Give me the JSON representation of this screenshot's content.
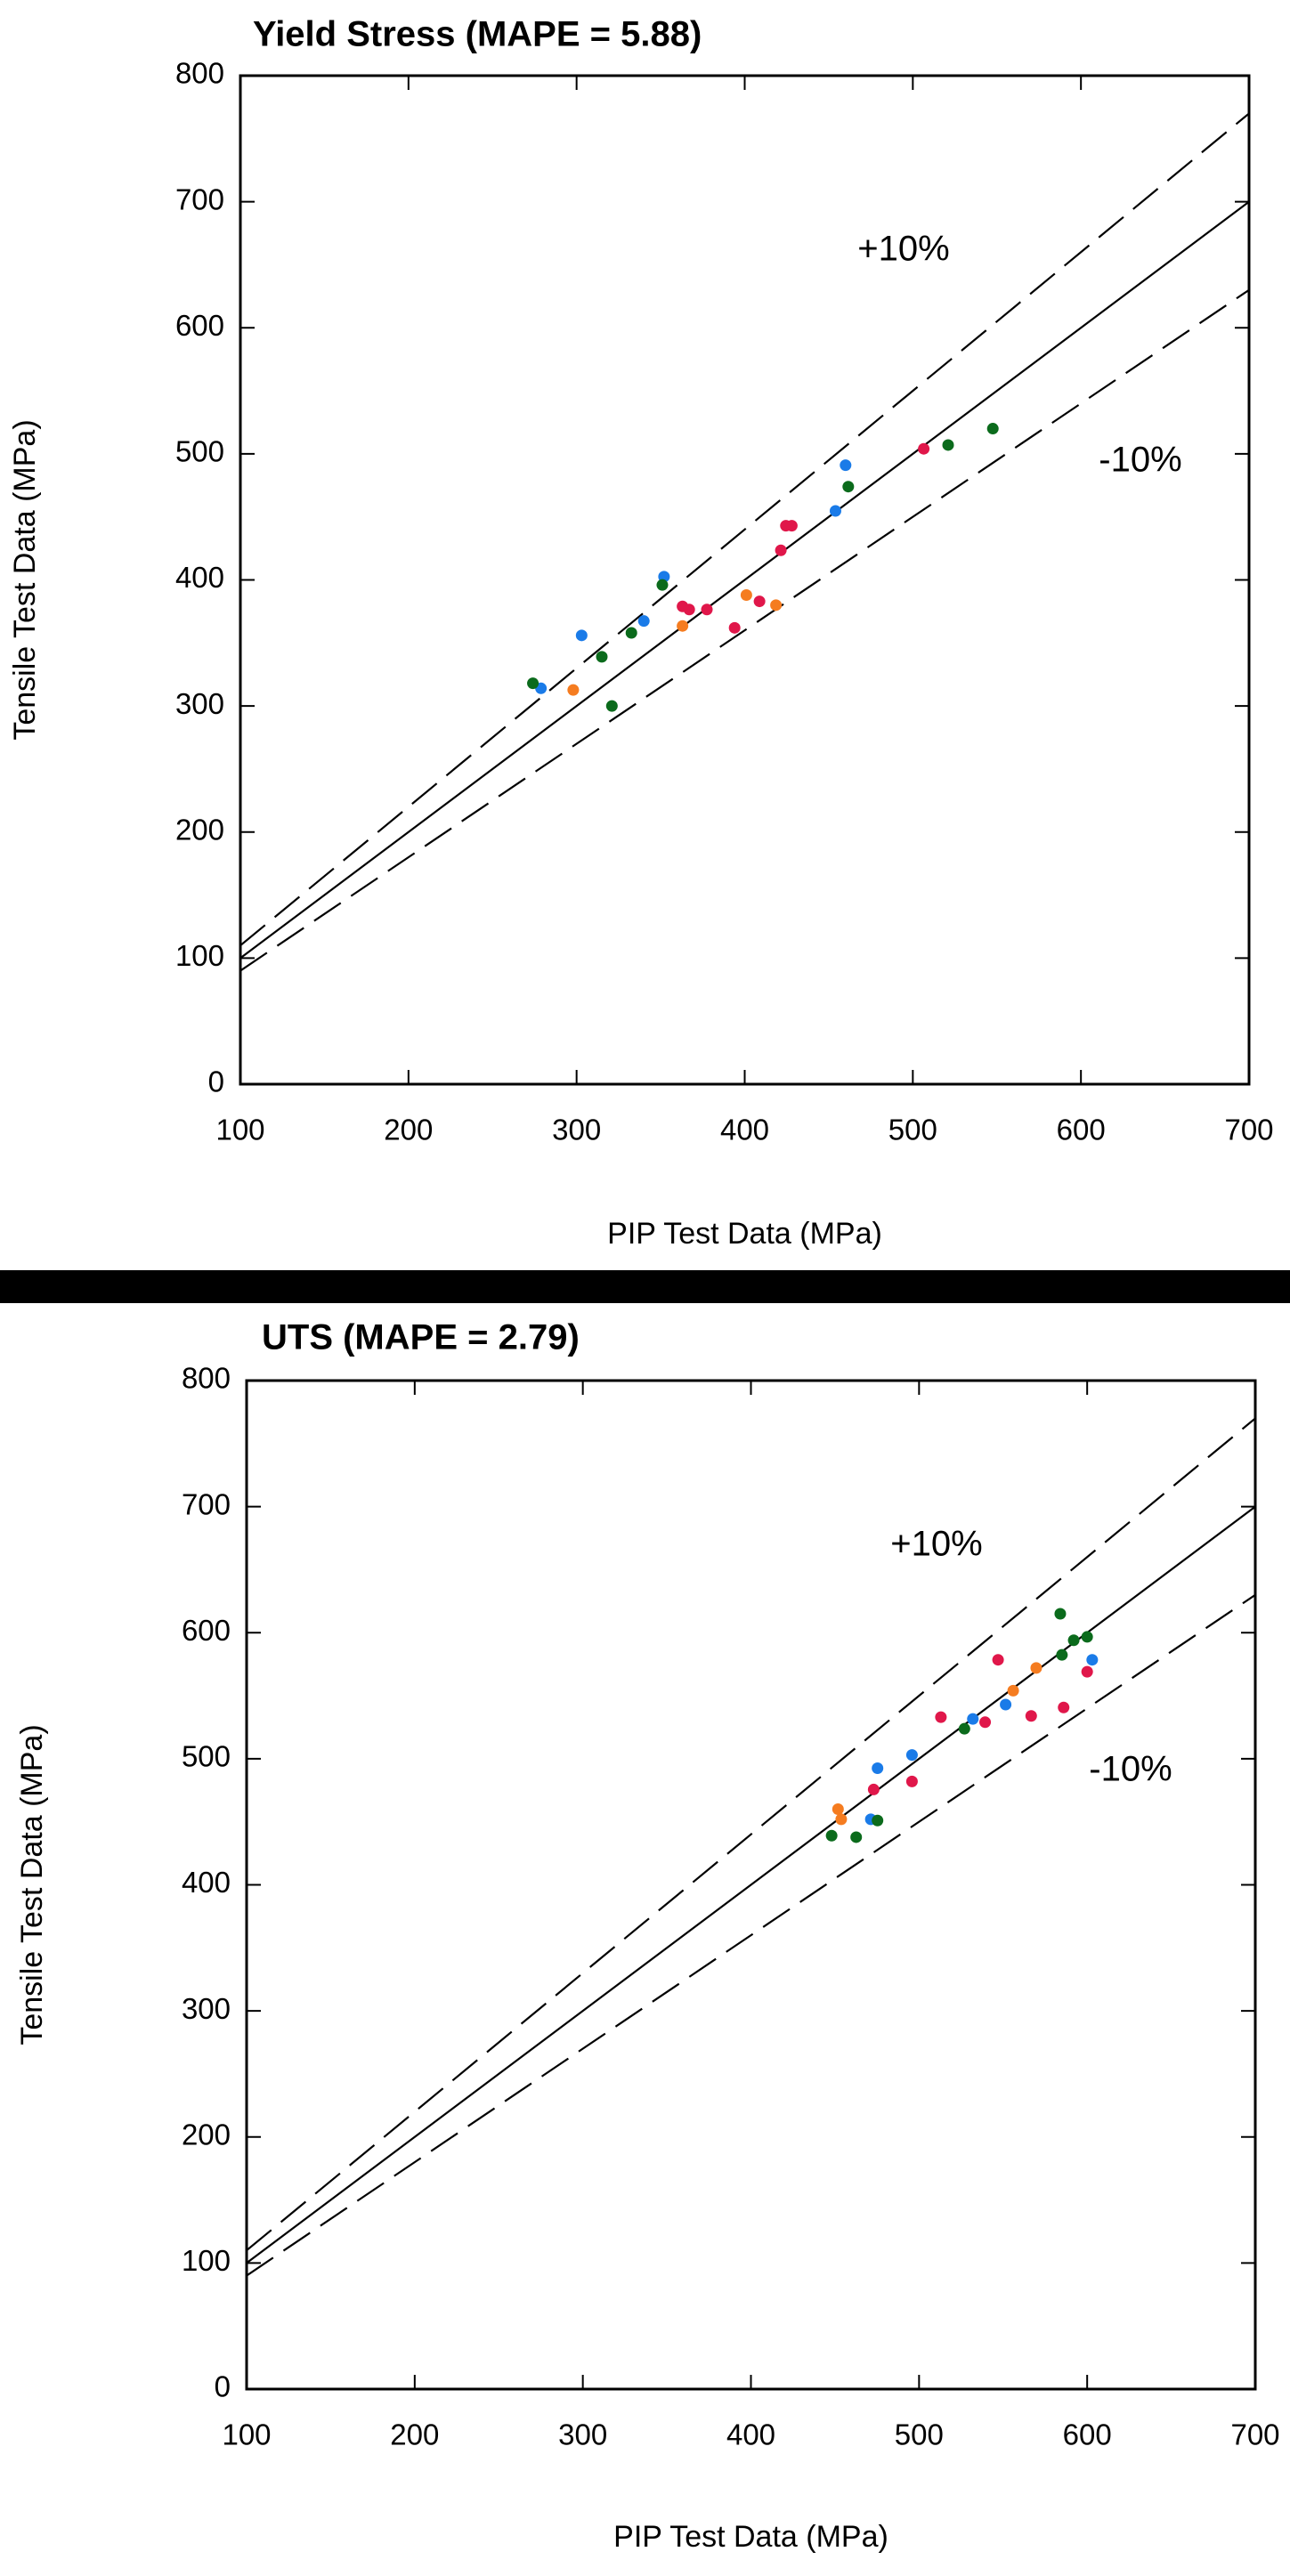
{
  "chart_data": [
    {
      "type": "scatter",
      "title": "Yield Stress (MAPE = 5.88)",
      "x_label": "PIP Test Data (MPa)",
      "y_label": "Tensile Test Data (MPa)",
      "xlim": [
        100,
        700
      ],
      "ylim": [
        0,
        800
      ],
      "xticks": [
        100,
        200,
        300,
        400,
        500,
        600,
        700
      ],
      "yticks": [
        0,
        100,
        200,
        300,
        400,
        500,
        600,
        700,
        800
      ],
      "annotations": [
        "+10%",
        "-10%"
      ],
      "lines": [
        {
          "x": [
            100,
            700
          ],
          "values": [
            100,
            700
          ],
          "style": "solid"
        },
        {
          "x": [
            100,
            700
          ],
          "values": [
            110,
            770
          ],
          "style": "dashed"
        },
        {
          "x": [
            100,
            700
          ],
          "values": [
            90,
            630
          ],
          "style": "dashed"
        }
      ],
      "series": [
        {
          "color": "#1a7be8",
          "x": [
            278.8,
            303,
            340,
            352,
            454,
            460
          ],
          "values": [
            314,
            356,
            367.4,
            402.6,
            454.7,
            491
          ]
        },
        {
          "color": "#f57c20",
          "x": [
            298,
            363,
            401,
            418.6
          ],
          "values": [
            312.7,
            363.5,
            388,
            380
          ]
        },
        {
          "color": "#e0174a",
          "x": [
            363,
            367,
            377.5,
            394,
            408.8,
            421.5,
            424.5,
            428,
            506.5
          ],
          "values": [
            379,
            376.5,
            376.5,
            362,
            383,
            423.5,
            443,
            443,
            504
          ]
        },
        {
          "color": "#0b6b1c",
          "x": [
            274,
            315,
            332.6,
            321,
            351,
            461.6,
            521,
            547.6
          ],
          "values": [
            318,
            339,
            358,
            300,
            396,
            474,
            507,
            520
          ]
        }
      ]
    },
    {
      "type": "scatter",
      "title": "UTS (MAPE = 2.79)",
      "x_label": "PIP Test Data (MPa)",
      "y_label": "Tensile Test Data (MPa)",
      "xlim": [
        100,
        700
      ],
      "ylim": [
        0,
        800
      ],
      "xticks": [
        100,
        200,
        300,
        400,
        500,
        600,
        700
      ],
      "yticks": [
        0,
        100,
        200,
        300,
        400,
        500,
        600,
        700,
        800
      ],
      "annotations": [
        "+10%",
        "-10%"
      ],
      "lines": [
        {
          "x": [
            100,
            700
          ],
          "values": [
            100,
            700
          ],
          "style": "solid"
        },
        {
          "x": [
            100,
            700
          ],
          "values": [
            110,
            770
          ],
          "style": "dashed"
        },
        {
          "x": [
            100,
            700
          ],
          "values": [
            90,
            630
          ],
          "style": "dashed"
        }
      ],
      "series": [
        {
          "color": "#1a7be8",
          "x": [
            475.3,
            495.8,
            471.3,
            532,
            551.5,
            603
          ],
          "values": [
            492.5,
            503,
            452,
            531.6,
            543,
            578.5
          ]
        },
        {
          "color": "#f57c20",
          "x": [
            451.8,
            453.7,
            556,
            569.7
          ],
          "values": [
            460,
            452,
            554,
            572
          ]
        },
        {
          "color": "#e0174a",
          "x": [
            473,
            495.8,
            513,
            539.3,
            547,
            566.7,
            586,
            600
          ],
          "values": [
            475.6,
            482,
            533,
            529,
            578.5,
            534,
            540.7,
            569
          ]
        },
        {
          "color": "#0b6b1c",
          "x": [
            448,
            462.6,
            475.3,
            527,
            584,
            585,
            592,
            600
          ],
          "values": [
            439,
            437.8,
            451,
            523.8,
            615,
            582.4,
            594,
            596.7
          ]
        }
      ]
    }
  ]
}
